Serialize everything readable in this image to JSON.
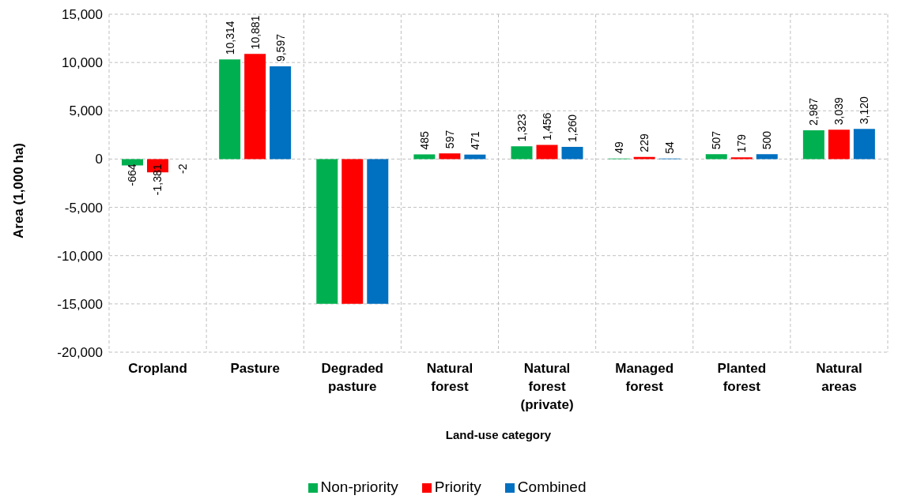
{
  "chart_data": {
    "type": "bar",
    "xlabel": "Land-use category",
    "ylabel": "Area (1,000 ha)",
    "categories": [
      "Cropland",
      "Pasture",
      "Degraded pasture",
      "Natural forest",
      "Natural forest (private)",
      "Managed forest",
      "Planted forest",
      "Natural areas"
    ],
    "series": [
      {
        "name": "Non-priority",
        "color": "#00b050",
        "values": [
          -664,
          10314,
          -15000,
          485,
          1323,
          49,
          507,
          2987
        ],
        "value_labels": [
          "-664",
          "10,314",
          null,
          "485",
          "1,323",
          "49",
          "507",
          "2,987"
        ]
      },
      {
        "name": "Priority",
        "color": "#ff0000",
        "values": [
          -1381,
          10881,
          -15000,
          597,
          1456,
          229,
          179,
          3039
        ],
        "value_labels": [
          "-1,381",
          "10,881",
          null,
          "597",
          "1,456",
          "229",
          "179",
          "3,039"
        ]
      },
      {
        "name": "Combined",
        "color": "#0070c0",
        "values": [
          -2,
          9597,
          -15000,
          471,
          1260,
          54,
          500,
          3120
        ],
        "value_labels": [
          "-2",
          "9,597",
          null,
          "471",
          "1,260",
          "54",
          "500",
          "3,120"
        ]
      }
    ],
    "ylim": [
      -20000,
      15000
    ],
    "yticks": [
      {
        "value": -20000,
        "label": "-20,000"
      },
      {
        "value": -15000,
        "label": "-15,000"
      },
      {
        "value": -10000,
        "label": "-10,000"
      },
      {
        "value": -5000,
        "label": "-5,000"
      },
      0,
      {
        "value": 5000,
        "label": "5,000"
      },
      {
        "value": 10000,
        "label": "10,000"
      },
      {
        "value": 15000,
        "label": "15,000"
      }
    ],
    "grid": true,
    "legend": "bottom"
  }
}
